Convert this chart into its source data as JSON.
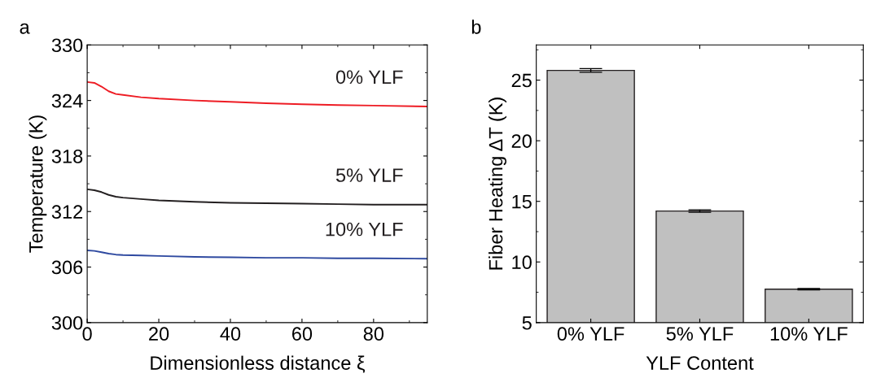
{
  "chart_data": [
    {
      "type": "line",
      "title": "a",
      "xlabel": "Dimensionless distance ξ",
      "ylabel": "Temperature (K)",
      "x": [
        0,
        2,
        4,
        6,
        8,
        10,
        15,
        20,
        30,
        40,
        50,
        60,
        70,
        80,
        95
      ],
      "xlim": [
        0,
        95
      ],
      "xticks": [
        0,
        20,
        40,
        60,
        80
      ],
      "ylim": [
        300,
        330
      ],
      "yticks": [
        300,
        306,
        312,
        318,
        324,
        330
      ],
      "grid": false,
      "legend": false,
      "series": [
        {
          "name": "0% YLF",
          "color": "#ee1c24",
          "values": [
            326.0,
            325.9,
            325.5,
            325.0,
            324.7,
            324.6,
            324.35,
            324.2,
            324.0,
            323.85,
            323.7,
            323.6,
            323.5,
            323.45,
            323.35
          ]
        },
        {
          "name": "5% YLF",
          "color": "#231f20",
          "values": [
            314.4,
            314.3,
            314.1,
            313.8,
            313.6,
            313.5,
            313.35,
            313.2,
            313.05,
            312.95,
            312.9,
            312.85,
            312.8,
            312.75,
            312.75
          ]
        },
        {
          "name": "10% YLF",
          "color": "#2e49a0",
          "values": [
            307.8,
            307.75,
            307.6,
            307.45,
            307.35,
            307.3,
            307.25,
            307.2,
            307.1,
            307.05,
            307.0,
            307.0,
            306.95,
            306.95,
            306.9
          ]
        }
      ]
    },
    {
      "type": "bar",
      "title": "b",
      "xlabel": "YLF Content",
      "ylabel": "Fiber Heating ΔT (K)",
      "categories": [
        "0% YLF",
        "5% YLF",
        "10% YLF"
      ],
      "values": [
        25.8,
        14.2,
        7.75
      ],
      "errors": [
        0.15,
        0.1,
        0.05
      ],
      "color": "#c0c0c0",
      "ylim": [
        5,
        27.9
      ],
      "yticks": [
        5,
        10,
        15,
        20,
        25
      ],
      "grid": false
    }
  ]
}
